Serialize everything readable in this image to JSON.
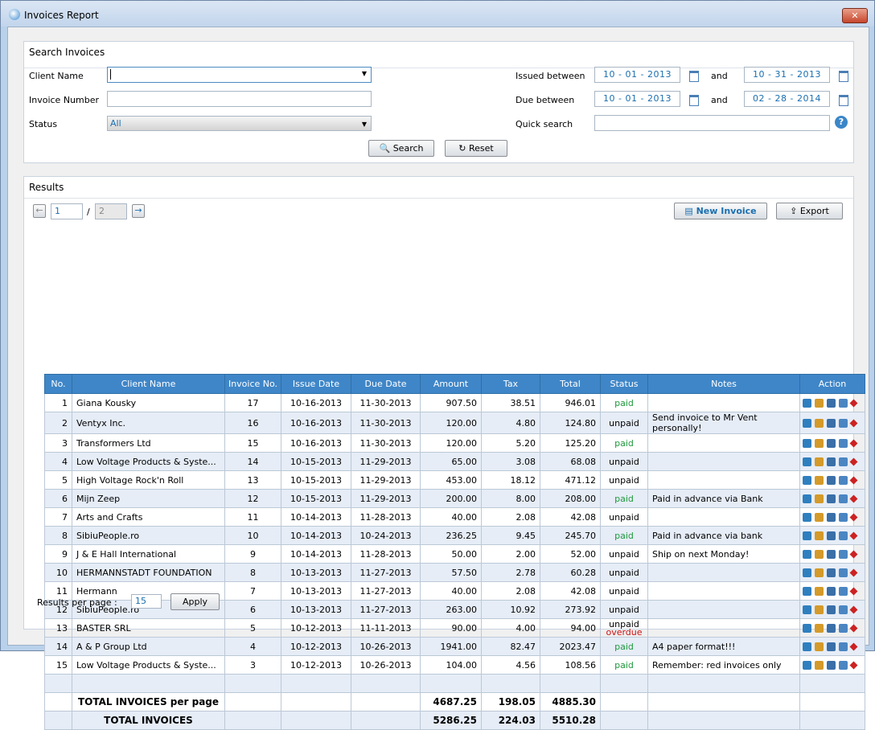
{
  "window": {
    "title": "Invoices Report"
  },
  "search": {
    "title": "Search Invoices",
    "client_label": "Client Name",
    "invoice_label": "Invoice Number",
    "status_label": "Status",
    "status_value": "All",
    "issued_label": "Issued between",
    "issued_from": "10 - 01 - 2013",
    "and_1": "and",
    "issued_to": "10 - 31 - 2013",
    "due_label": "Due between",
    "due_from": "10 - 01 - 2013",
    "and_2": "and",
    "due_to": "02 - 28 - 2014",
    "quick_label": "Quick search",
    "search_button": "Search",
    "reset_button": "Reset"
  },
  "results": {
    "title": "Results",
    "page": "1",
    "separator": "/",
    "pages": "2",
    "new_button": "New Invoice",
    "export_button": "Export",
    "table": {
      "headers": [
        "No.",
        "Client Name",
        "Invoice No.",
        "Issue Date",
        "Due Date",
        "Amount",
        "Tax",
        "Total",
        "Status",
        "Notes",
        "Action"
      ],
      "rows": [
        {
          "no": "1",
          "client": "Giana Kousky",
          "invoice": "17",
          "issued": "10-16-2013",
          "due": "11-30-2013",
          "amount": "907.50",
          "tax": "38.51",
          "total": "946.01",
          "status": "paid"
        },
        {
          "no": "2",
          "client": "Ventyx Inc.",
          "invoice": "16",
          "issued": "10-16-2013",
          "due": "11-30-2013",
          "amount": "120.00",
          "tax": "4.80",
          "total": "124.80",
          "status": "unpaid",
          "notes": "Send invoice to Mr Vent personally!"
        },
        {
          "no": "3",
          "client": "Transformers Ltd",
          "invoice": "15",
          "issued": "10-16-2013",
          "due": "11-30-2013",
          "amount": "120.00",
          "tax": "5.20",
          "total": "125.20",
          "status": "paid"
        },
        {
          "no": "4",
          "client": "Low Voltage Products & Syste...",
          "invoice": "14",
          "issued": "10-15-2013",
          "due": "11-29-2013",
          "amount": "65.00",
          "tax": "3.08",
          "total": "68.08",
          "status": "unpaid"
        },
        {
          "no": "5",
          "client": "High Voltage Rock'n Roll",
          "invoice": "13",
          "issued": "10-15-2013",
          "due": "11-29-2013",
          "amount": "453.00",
          "tax": "18.12",
          "total": "471.12",
          "status": "unpaid"
        },
        {
          "no": "6",
          "client": "Mijn Zeep",
          "invoice": "12",
          "issued": "10-15-2013",
          "due": "11-29-2013",
          "amount": "200.00",
          "tax": "8.00",
          "total": "208.00",
          "status": "paid",
          "notes": "Paid in advance via Bank"
        },
        {
          "no": "7",
          "client": "Arts and Crafts",
          "invoice": "11",
          "issued": "10-14-2013",
          "due": "11-28-2013",
          "amount": "40.00",
          "tax": "2.08",
          "total": "42.08",
          "status": "unpaid"
        },
        {
          "no": "8",
          "client": "SibiuPeople.ro",
          "invoice": "10",
          "issued": "10-14-2013",
          "due": "10-24-2013",
          "amount": "236.25",
          "tax": "9.45",
          "total": "245.70",
          "status": "paid",
          "notes": "Paid in advance via bank"
        },
        {
          "no": "9",
          "client": "J & E Hall International",
          "invoice": "9",
          "issued": "10-14-2013",
          "due": "11-28-2013",
          "amount": "50.00",
          "tax": "2.00",
          "total": "52.00",
          "status": "unpaid",
          "notes": "Ship on next Monday!"
        },
        {
          "no": "10",
          "client": "HERMANNSTADT FOUNDATION",
          "invoice": "8",
          "issued": "10-13-2013",
          "due": "11-27-2013",
          "amount": "57.50",
          "tax": "2.78",
          "total": "60.28",
          "status": "unpaid"
        },
        {
          "no": "11",
          "client": "Hermann",
          "invoice": "7",
          "issued": "10-13-2013",
          "due": "11-27-2013",
          "amount": "40.00",
          "tax": "2.08",
          "total": "42.08",
          "status": "unpaid"
        },
        {
          "no": "12",
          "client": "SibiuPeople.ro",
          "invoice": "6",
          "issued": "10-13-2013",
          "due": "11-27-2013",
          "amount": "263.00",
          "tax": "10.92",
          "total": "273.92",
          "status": "unpaid"
        },
        {
          "no": "13",
          "client": "BASTER SRL",
          "invoice": "5",
          "issued": "10-12-2013",
          "due": "11-11-2013",
          "amount": "90.00",
          "tax": "4.00",
          "total": "94.00",
          "status": "unpaid",
          "overdue": "overdue"
        },
        {
          "no": "14",
          "client": "A & P Group Ltd",
          "invoice": "4",
          "issued": "10-12-2013",
          "due": "10-26-2013",
          "amount": "1941.00",
          "tax": "82.47",
          "total": "2023.47",
          "status": "paid",
          "notes": "A4 paper format!!!"
        },
        {
          "no": "15",
          "client": "Low Voltage Products & Syste...",
          "invoice": "3",
          "issued": "10-12-2013",
          "due": "10-26-2013",
          "amount": "104.00",
          "tax": "4.56",
          "total": "108.56",
          "status": "paid",
          "notes": "Remember: red invoices only"
        }
      ],
      "totals": [
        {
          "label": "TOTAL INVOICES per page",
          "amount": "4687.25",
          "tax": "198.05",
          "total": "4885.30"
        },
        {
          "label": "TOTAL INVOICES",
          "amount": "5286.25",
          "tax": "224.03",
          "total": "5510.28"
        }
      ]
    },
    "per_page_label": "Results per page :",
    "per_page": "15",
    "apply_button": "Apply"
  }
}
